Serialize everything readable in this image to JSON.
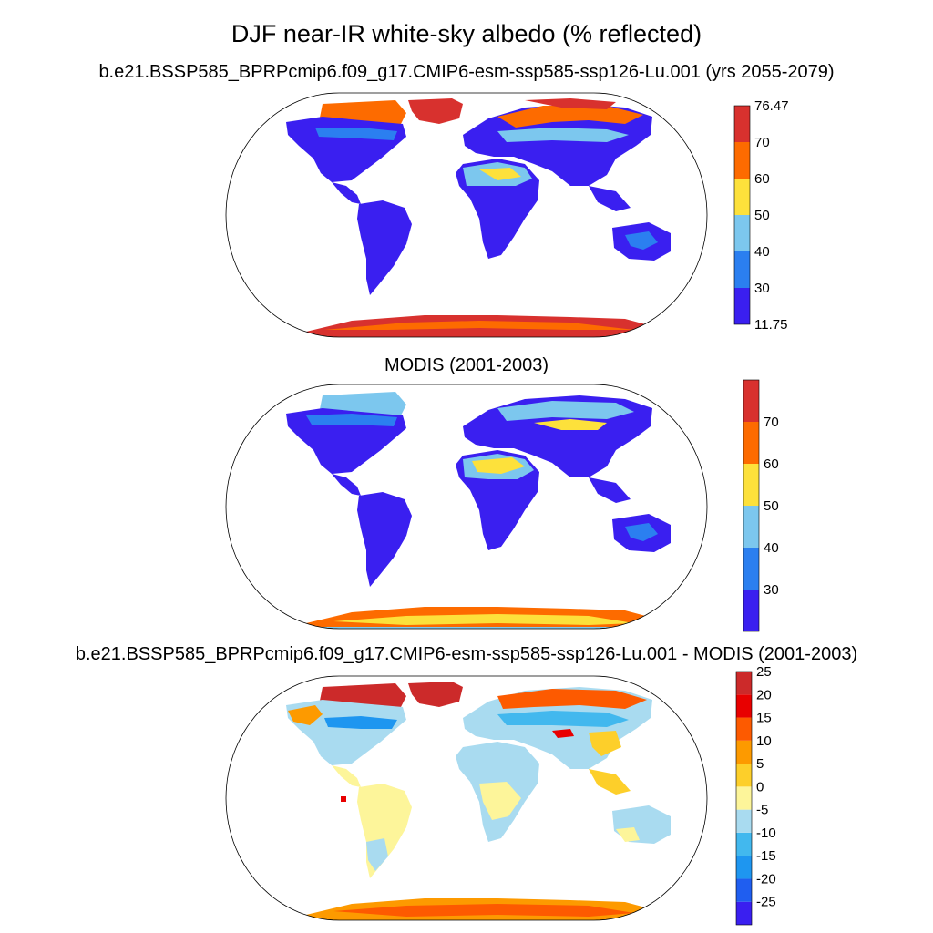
{
  "title": "DJF near-IR white-sky albedo (% reflected)",
  "panels": [
    {
      "id": "model",
      "subtitle": "b.e21.BSSP585_BPRPcmip6.f09_g17.CMIP6-esm-ssp585-ssp126-Lu.001 (yrs 2055-2079)",
      "colorbar": {
        "colors": [
          "#3a1ff0",
          "#2b7ff0",
          "#7cc7ee",
          "#fde13b",
          "#fd6b00",
          "#d8312e"
        ],
        "labels": [
          "11.75",
          "30",
          "40",
          "50",
          "60",
          "70",
          "76.47"
        ]
      }
    },
    {
      "id": "obs",
      "subtitle": "MODIS (2001-2003)",
      "colorbar": {
        "colors": [
          "#3a1ff0",
          "#2b7ff0",
          "#7cc7ee",
          "#fde13b",
          "#fd6b00",
          "#d8312e"
        ],
        "labels": [
          "",
          "30",
          "40",
          "50",
          "60",
          "70",
          ""
        ]
      }
    },
    {
      "id": "diff",
      "subtitle": "b.e21.BSSP585_BPRPcmip6.f09_g17.CMIP6-esm-ssp585-ssp126-Lu.001 - MODIS (2001-2003)",
      "colorbar": {
        "colors": [
          "#3a1ff0",
          "#1f5ef0",
          "#1e96f0",
          "#42b8ee",
          "#a9dbf0",
          "#fdf59a",
          "#fdcf2a",
          "#fd9a00",
          "#fd5a00",
          "#e80000",
          "#cc2a2a"
        ],
        "labels": [
          "",
          "-25",
          "-20",
          "-15",
          "-10",
          "-5",
          "0",
          "5",
          "10",
          "15",
          "20",
          "25",
          ""
        ]
      }
    }
  ]
}
